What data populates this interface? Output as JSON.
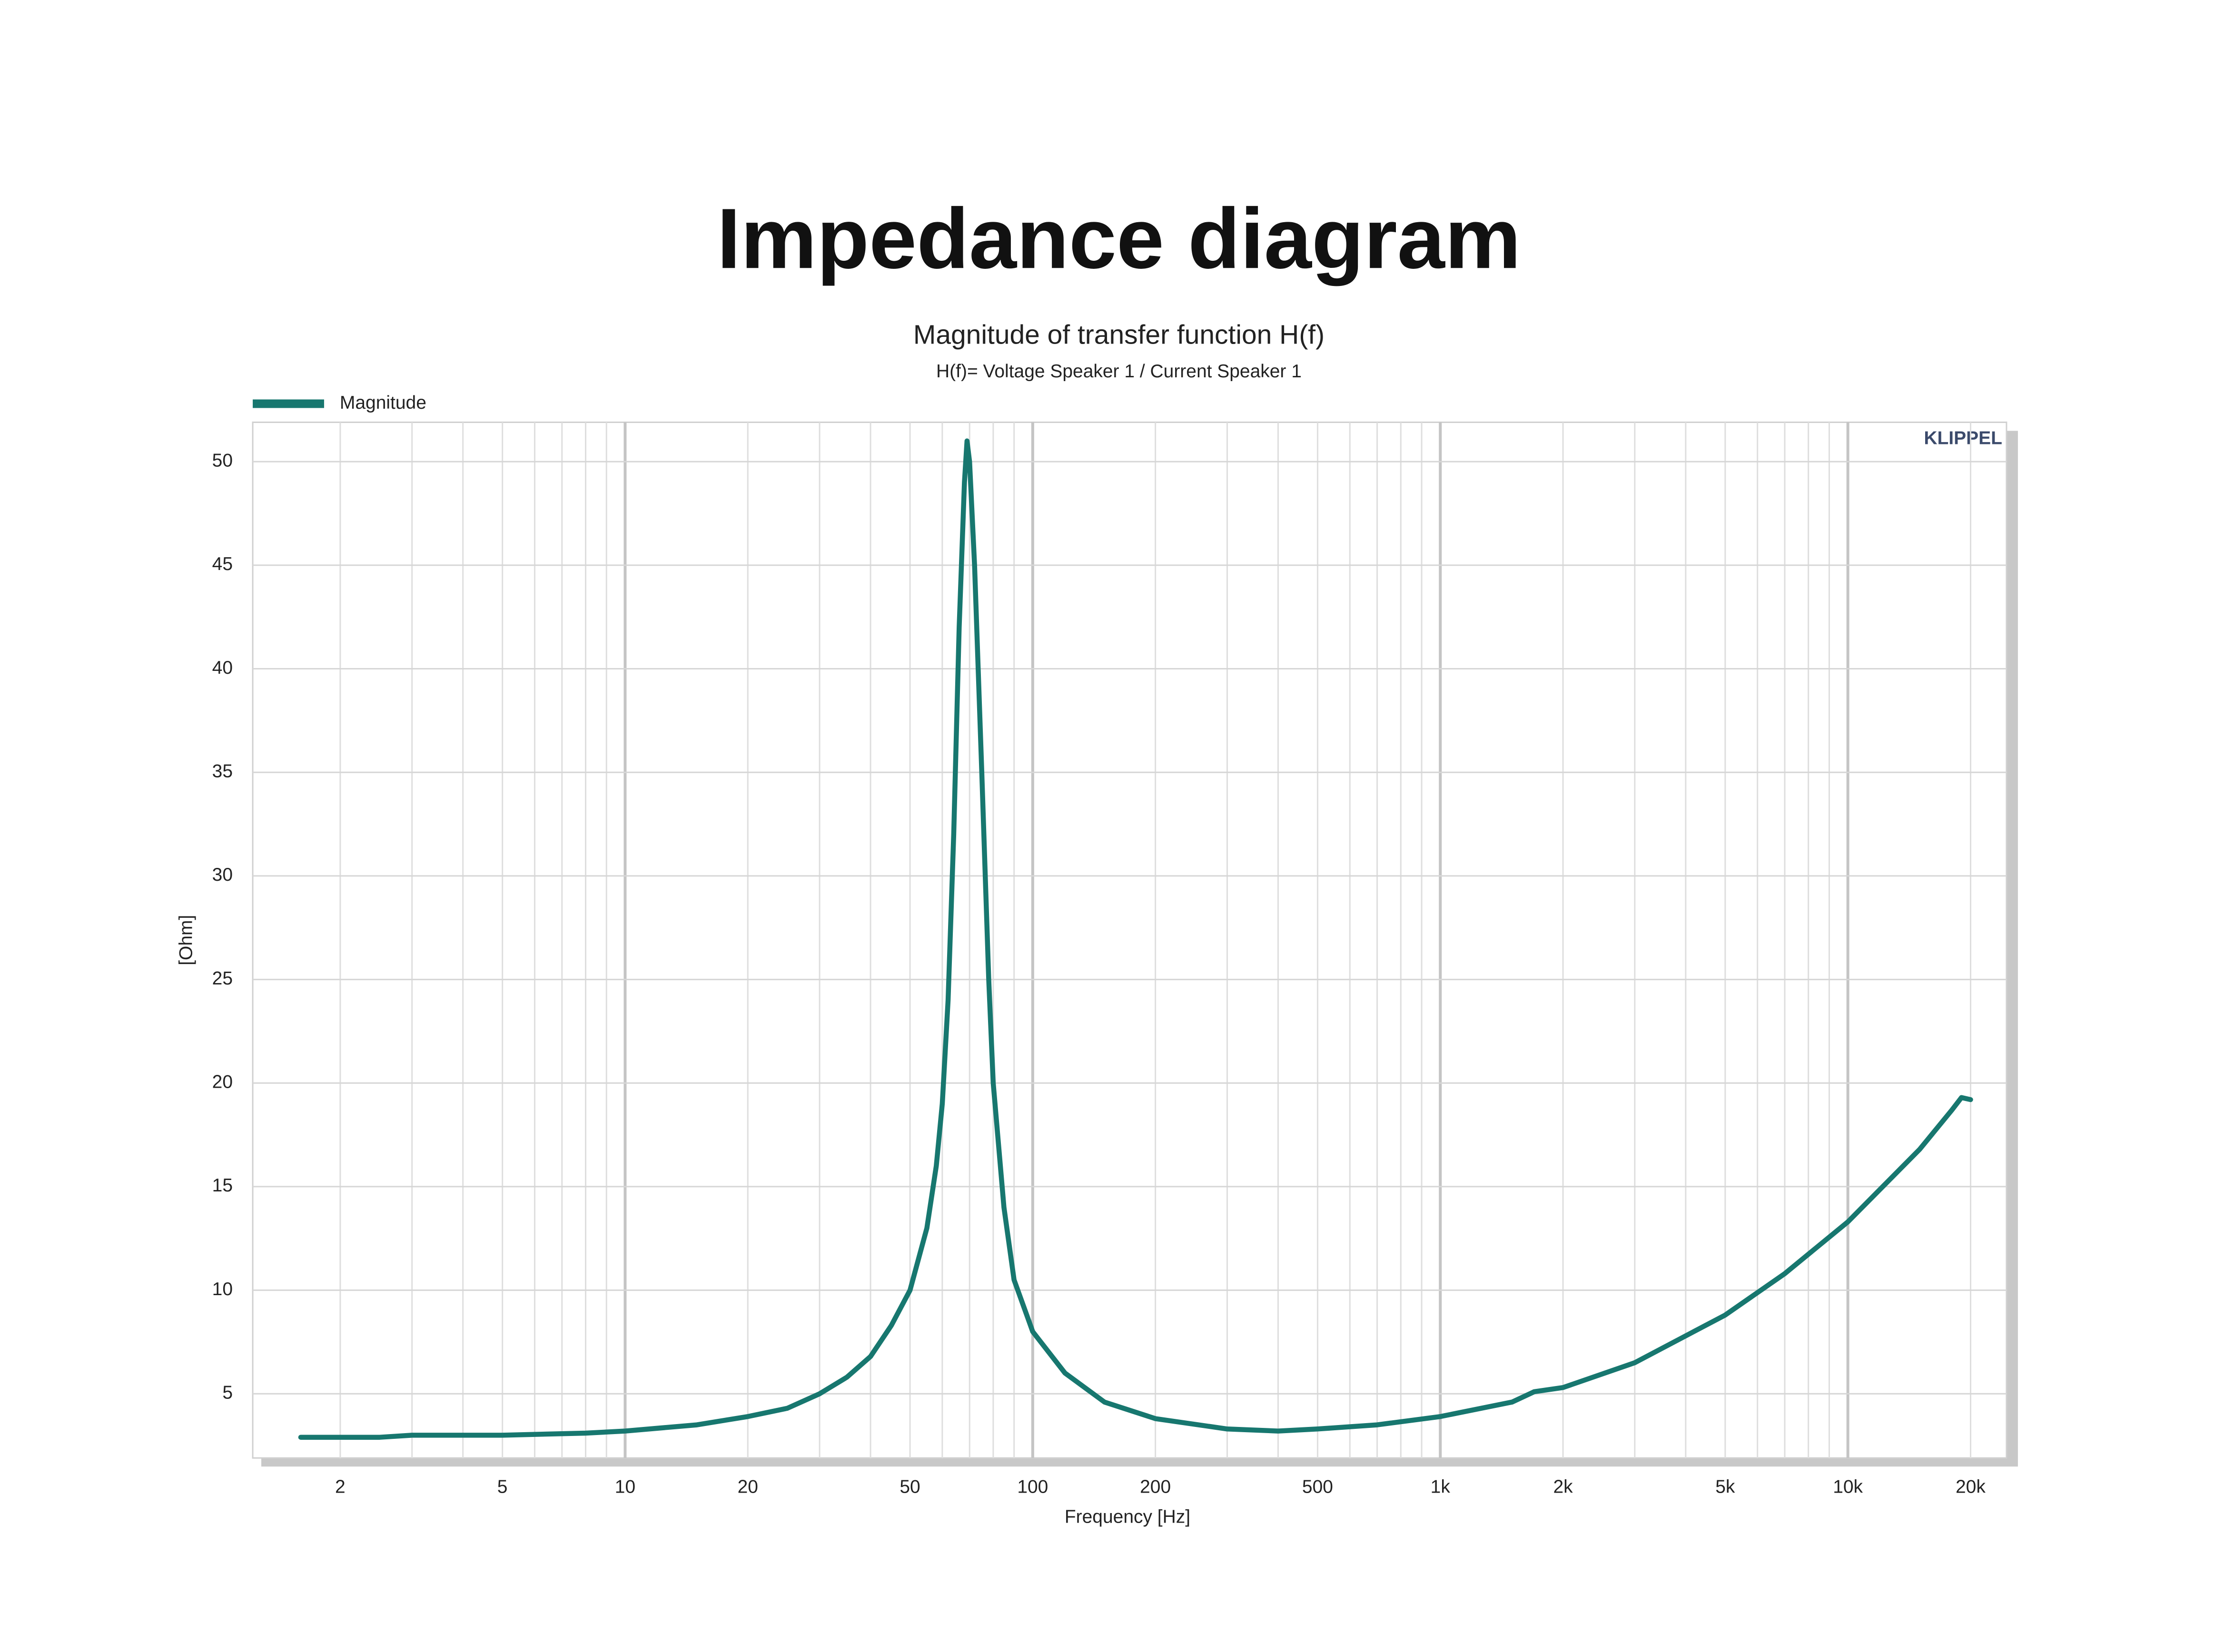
{
  "page_title": "Impedance diagram",
  "chart_data": {
    "type": "line",
    "title": "Magnitude of transfer function H(f)",
    "subtitle": "H(f)= Voltage Speaker 1 / Current Speaker 1",
    "brand": "KLIPPEL",
    "xlabel": "Frequency [Hz]",
    "ylabel": "[Ohm]",
    "xscale": "log",
    "grid": true,
    "legend": "top-left",
    "xlim": [
      1.22,
      24500
    ],
    "ylim": [
      1.9,
      51.9
    ],
    "xticks": [
      2,
      5,
      10,
      20,
      50,
      100,
      200,
      500,
      {
        "value": 1000,
        "label": "1k"
      },
      {
        "value": 2000,
        "label": "2k"
      },
      {
        "value": 5000,
        "label": "5k"
      },
      {
        "value": 10000,
        "label": "10k"
      },
      {
        "value": 20000,
        "label": "20k"
      }
    ],
    "minor_xticks": [
      3,
      4,
      6,
      7,
      8,
      9,
      30,
      40,
      60,
      70,
      80,
      90,
      300,
      400,
      600,
      700,
      800,
      900,
      3000,
      4000,
      6000,
      7000,
      8000,
      9000
    ],
    "yticks": [
      5,
      10,
      15,
      20,
      25,
      30,
      35,
      40,
      45,
      50
    ],
    "series": [
      {
        "name": "Magnitude",
        "color": "#17776f",
        "x": [
          1.6,
          2.5,
          3,
          5,
          8,
          10,
          15,
          20,
          25,
          30,
          35,
          40,
          45,
          50,
          55,
          58,
          60,
          62,
          64,
          66,
          68,
          69,
          70,
          72,
          75,
          78,
          80,
          85,
          90,
          100,
          120,
          150,
          200,
          300,
          400,
          500,
          700,
          1000,
          1500,
          1700,
          2000,
          3000,
          5000,
          7000,
          10000,
          15000,
          18000,
          19000,
          20000
        ],
        "values": [
          2.9,
          2.9,
          3.0,
          3.0,
          3.1,
          3.2,
          3.5,
          3.9,
          4.3,
          5.0,
          5.8,
          6.8,
          8.3,
          10.0,
          13,
          16,
          19,
          24,
          32,
          42,
          49,
          51,
          50,
          45,
          35,
          25,
          20,
          14,
          10.5,
          8.0,
          6.0,
          4.6,
          3.8,
          3.3,
          3.2,
          3.3,
          3.5,
          3.9,
          4.6,
          5.1,
          5.3,
          6.5,
          8.8,
          10.8,
          13.3,
          16.8,
          18.7,
          19.3,
          19.2
        ]
      }
    ]
  }
}
